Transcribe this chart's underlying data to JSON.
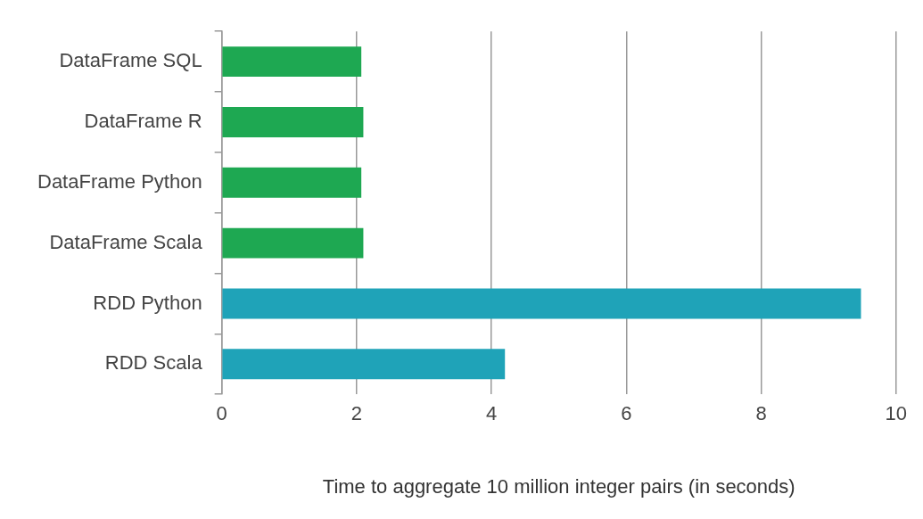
{
  "chart_data": {
    "type": "bar",
    "orientation": "horizontal",
    "xlabel": "Time to aggregate 10 million integer pairs (in seconds)",
    "categories": [
      "DataFrame SQL",
      "DataFrame R",
      "DataFrame Python",
      "DataFrame Scala",
      "RDD Python",
      "RDD Scala"
    ],
    "values": [
      2.07,
      2.1,
      2.07,
      2.1,
      9.48,
      4.2
    ],
    "colors": [
      "#1ea852",
      "#1ea852",
      "#1ea852",
      "#1ea852",
      "#1fa3b8",
      "#1fa3b8"
    ],
    "xlim": [
      0,
      10
    ],
    "xticks": [
      0,
      2,
      4,
      6,
      8,
      10
    ],
    "grid": "x",
    "legend": false
  }
}
